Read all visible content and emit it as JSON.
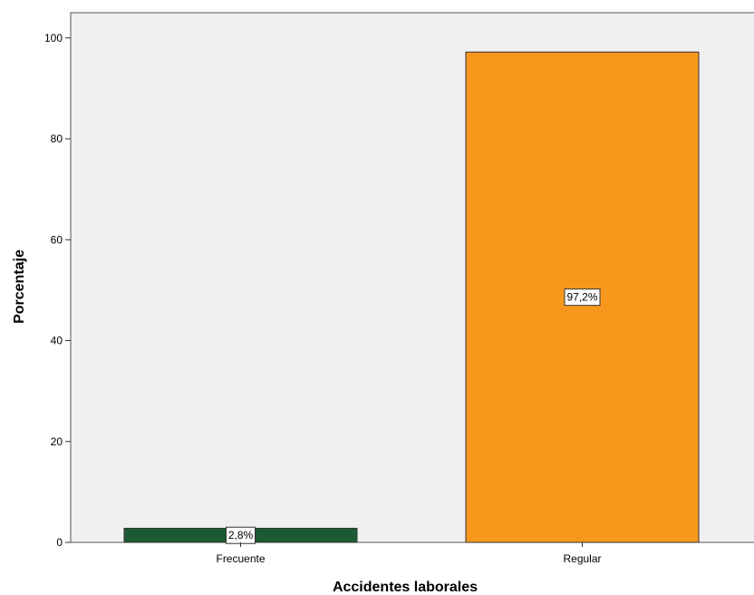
{
  "chart_data": {
    "type": "bar",
    "title": "",
    "xlabel": "Accidentes laborales",
    "ylabel": "Porcentaje",
    "categories": [
      "Frecuente",
      "Regular"
    ],
    "values": [
      2.8,
      97.2
    ],
    "data_labels": [
      "2,8%",
      "97,2%"
    ],
    "bar_colors": [
      "#1c5a32",
      "#f7981d"
    ],
    "ylim": [
      0,
      105
    ],
    "yticks": [
      0,
      20,
      40,
      60,
      80,
      100
    ],
    "ytick_labels": [
      "0",
      "20",
      "40",
      "60",
      "80",
      "100"
    ],
    "grid": false,
    "legend": "none",
    "plot_background": "#f0f0f0"
  }
}
